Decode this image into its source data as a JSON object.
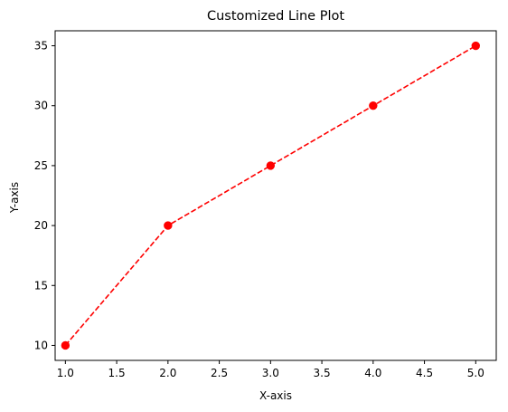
{
  "chart_data": {
    "type": "line",
    "title": "Customized Line Plot",
    "xlabel": "X-axis",
    "ylabel": "Y-axis",
    "xlim": [
      0.9,
      5.2
    ],
    "ylim": [
      8.75,
      36.25
    ],
    "x_ticks": [
      1.0,
      1.5,
      2.0,
      2.5,
      3.0,
      3.5,
      4.0,
      4.5,
      5.0
    ],
    "x_tick_labels": [
      "1.0",
      "1.5",
      "2.0",
      "2.5",
      "3.0",
      "3.5",
      "4.0",
      "4.5",
      "5.0"
    ],
    "y_ticks": [
      10,
      15,
      20,
      25,
      30,
      35
    ],
    "y_tick_labels": [
      "10",
      "15",
      "20",
      "25",
      "30",
      "35"
    ],
    "grid": false,
    "legend": "none",
    "series": [
      {
        "x": [
          1,
          2,
          3,
          4,
          5
        ],
        "values": [
          10,
          20,
          25,
          30,
          35
        ],
        "color": "#ff0000",
        "line_style": "dashed",
        "marker": "circle"
      }
    ]
  }
}
